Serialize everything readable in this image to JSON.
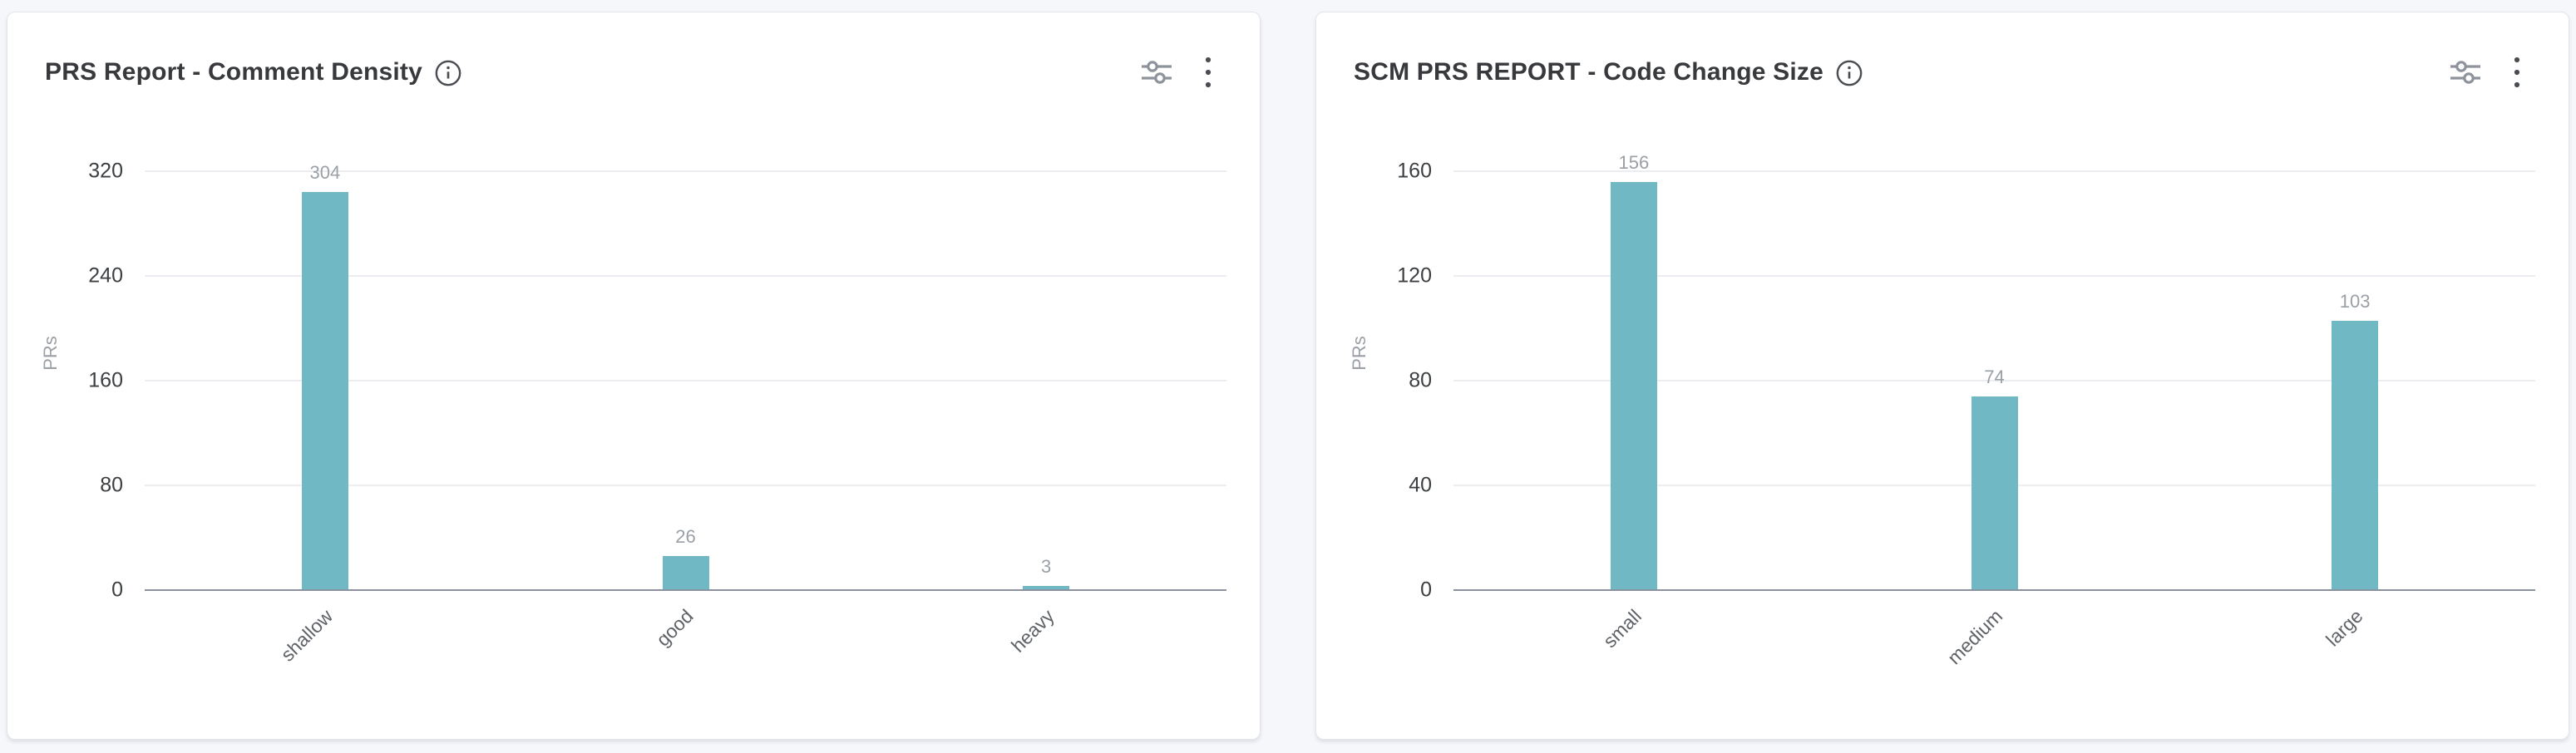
{
  "theme": {
    "page-bg": "#f5f7fb",
    "card-bg": "#ffffff",
    "card-border": "#e2e5ea",
    "title-color": "#37393c",
    "tick-color": "#3c4043",
    "muted-color": "#9aa0a6",
    "category-color": "#5f6368",
    "grid-color": "#ebedf0",
    "axis-color": "#8a92a0",
    "icon-color": "#8e939b",
    "icon-dark": "#4a4d52",
    "bar-color": "#70b9c4"
  },
  "cards": [
    {
      "title": "PRS Report - Comment Density",
      "header_icons": [
        "info-circle",
        "filter-sliders",
        "kebab-menu"
      ]
    },
    {
      "title": "SCM PRS REPORT - Code Change Size",
      "header_icons": [
        "info-circle",
        "filter-sliders",
        "kebab-menu"
      ]
    }
  ],
  "chart_data": [
    {
      "type": "bar",
      "title": "PRS Report - Comment Density",
      "categories": [
        "shallow",
        "good",
        "heavy"
      ],
      "values": [
        304,
        26,
        3
      ],
      "xlabel": "",
      "ylabel": "PRs",
      "ylim": [
        0,
        320
      ],
      "yticks": [
        0,
        80,
        160,
        240,
        320
      ],
      "grid": true,
      "value_labels": true,
      "category_label_rotation_deg": 45,
      "bar_color": "#70b9c4",
      "legend": "none"
    },
    {
      "type": "bar",
      "title": "SCM PRS REPORT - Code Change Size",
      "categories": [
        "small",
        "medium",
        "large"
      ],
      "values": [
        156,
        74,
        103
      ],
      "xlabel": "",
      "ylabel": "PRs",
      "ylim": [
        0,
        160
      ],
      "yticks": [
        0,
        40,
        80,
        120,
        160
      ],
      "grid": true,
      "value_labels": true,
      "category_label_rotation_deg": 45,
      "bar_color": "#70b9c4",
      "legend": "none"
    }
  ]
}
